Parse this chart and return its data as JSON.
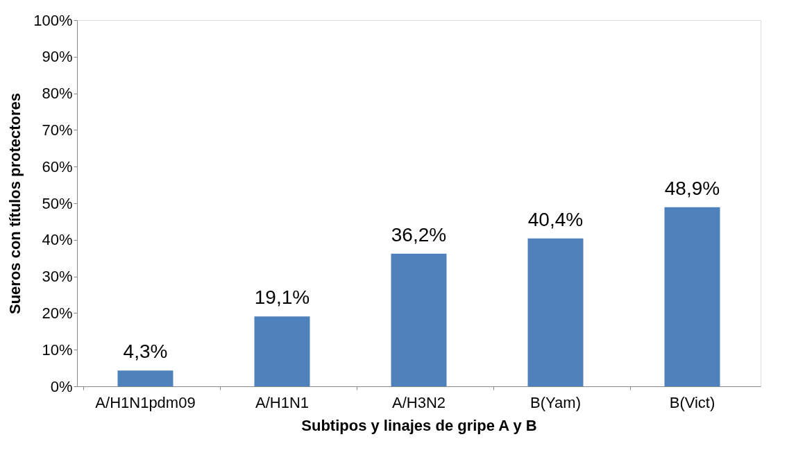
{
  "chart_data": {
    "type": "bar",
    "xlabel": "Subtipos y linajes de gripe A y B",
    "ylabel": "Sueros con títulos protectores",
    "categories": [
      "A/H1N1pdm09",
      "A/H1N1",
      "A/H3N2",
      "B(Yam)",
      "B(Vict)"
    ],
    "values": [
      4.3,
      19.1,
      36.2,
      40.4,
      48.9
    ],
    "value_labels": [
      "4,3%",
      "19,1%",
      "36,2%",
      "40,4%",
      "48,9%"
    ],
    "color": "#4f81bd",
    "ylim": [
      0,
      100
    ],
    "yticks": [
      {
        "value": 0,
        "label": "0%"
      },
      {
        "value": 10,
        "label": "10%"
      },
      {
        "value": 20,
        "label": "20%"
      },
      {
        "value": 30,
        "label": "30%"
      },
      {
        "value": 40,
        "label": "40%"
      },
      {
        "value": 50,
        "label": "50%"
      },
      {
        "value": 60,
        "label": "60%"
      },
      {
        "value": 70,
        "label": "70%"
      },
      {
        "value": 80,
        "label": "80%"
      },
      {
        "value": 90,
        "label": "90%"
      },
      {
        "value": 100,
        "label": "100%"
      }
    ],
    "grid": false
  }
}
